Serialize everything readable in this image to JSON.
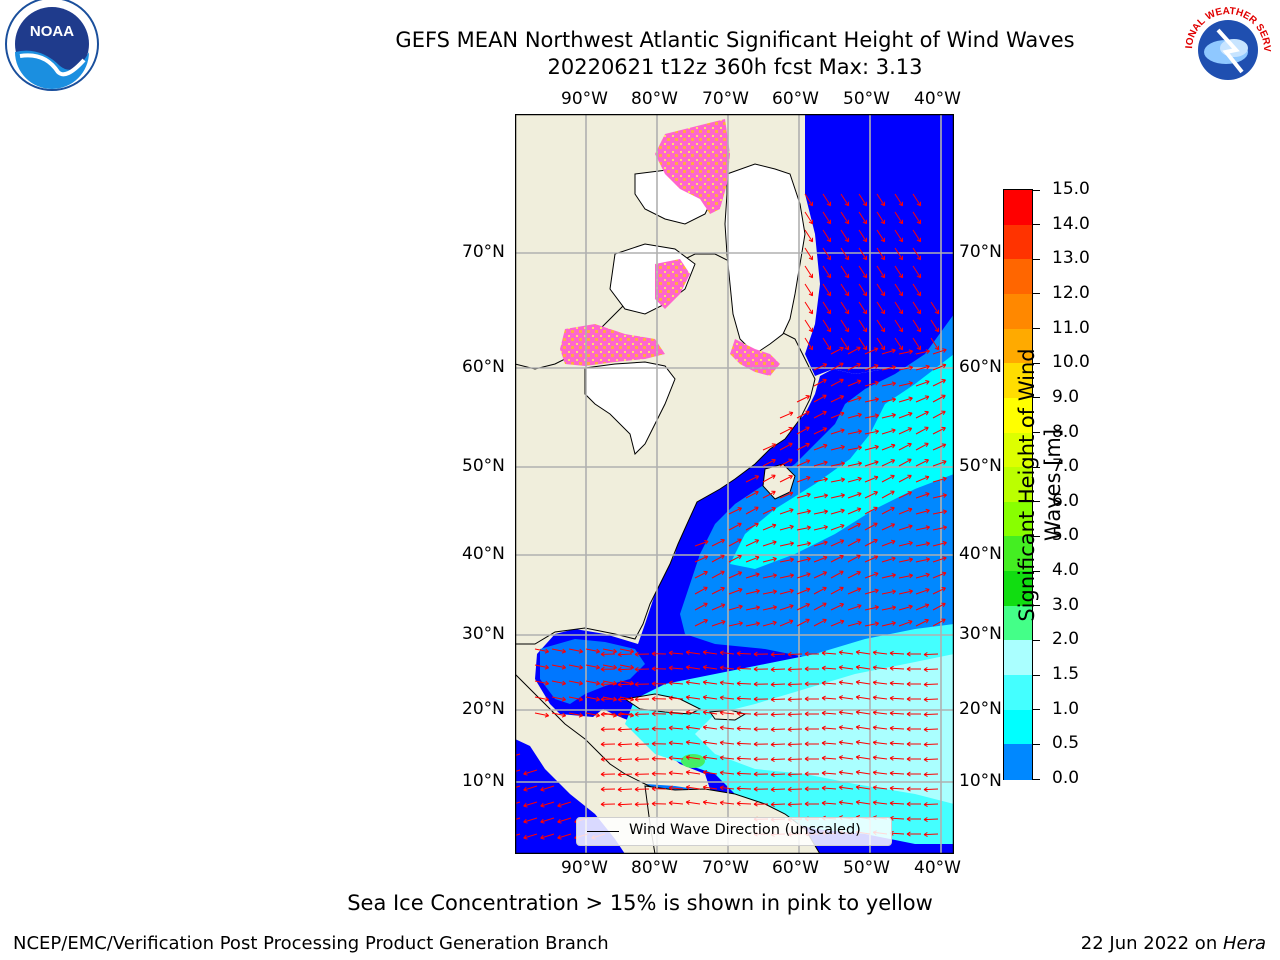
{
  "header": {
    "title_line1": "GEFS MEAN Northwest Atlantic Significant Height of Wind Waves",
    "title_line2": "20220621 t12z 360h fcst   Max: 3.13"
  },
  "logos": {
    "left": "NOAA",
    "right_text": "NATIONAL WEATHER SERVICE"
  },
  "map": {
    "lon_labels": [
      "90°W",
      "80°W",
      "70°W",
      "60°W",
      "50°W",
      "40°W"
    ],
    "lat_labels": [
      "70°N",
      "60°N",
      "50°N",
      "40°N",
      "30°N",
      "20°N",
      "10°N"
    ],
    "legend_label": "Wind Wave Direction (unscaled)",
    "colors": {
      "land": "#f0eedc",
      "ice_free_white": "#ffffff",
      "sea_ice": "#ff66cc",
      "arrows": "#ff0000",
      "grid": "#b0b0b0"
    }
  },
  "colorbar": {
    "label_line1": "Significant Height of Wind",
    "label_line2": "Waves [m]",
    "ticks": [
      "15.0",
      "14.0",
      "13.0",
      "12.0",
      "11.0",
      "10.0",
      "9.0",
      "8.0",
      "7.0",
      "6.0",
      "5.0",
      "4.0",
      "3.0",
      "2.0",
      "1.5",
      "1.0",
      "0.5",
      "0.0"
    ],
    "colors": [
      "#ff0000",
      "#ff3300",
      "#ff6600",
      "#ff8800",
      "#ffaa00",
      "#ffdd00",
      "#ffff00",
      "#ddff00",
      "#bbff00",
      "#88ff00",
      "#44ee22",
      "#11dd11",
      "#44ff88",
      "#aaffff",
      "#44ffff",
      "#00ffff",
      "#0088ff",
      "#0000ff"
    ]
  },
  "footer": {
    "subtitle": "Sea Ice Concentration > 15% is shown in pink to yellow",
    "left": "NCEP/EMC/Verification Post Processing Product Generation Branch",
    "date": "22 Jun 2022 on ",
    "machine": "Hera"
  }
}
